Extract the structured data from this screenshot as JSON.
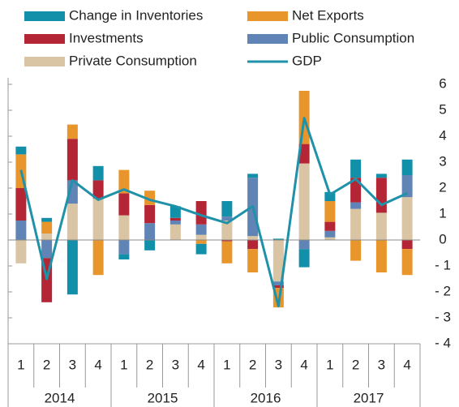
{
  "chart_data": {
    "type": "bar",
    "stacked": true,
    "categories": [
      "1",
      "2",
      "3",
      "4",
      "1",
      "2",
      "3",
      "4",
      "1",
      "2",
      "3",
      "4",
      "1",
      "2",
      "3",
      "4"
    ],
    "years": [
      "2014",
      "2015",
      "2016",
      "2017"
    ],
    "ylim": [
      -4,
      6
    ],
    "yticks": [
      {
        "value": -4,
        "label": "- 4"
      },
      {
        "value": -3,
        "label": "- 3"
      },
      {
        "value": -2,
        "label": "- 2"
      },
      {
        "value": -1,
        "label": "- 1"
      },
      0,
      1,
      2,
      3,
      4,
      5,
      6
    ],
    "series": [
      {
        "name": "Change in Inventories",
        "color": "#1390a9",
        "values": [
          0.3,
          0.15,
          -2.1,
          0.55,
          -0.2,
          -0.4,
          0.45,
          -0.4,
          0.6,
          0.15,
          0.05,
          -0.7,
          0.35,
          0.7,
          0.15,
          0.6
        ]
      },
      {
        "name": "Net Exports",
        "color": "#e8962c",
        "values": [
          1.3,
          0.45,
          0.55,
          -1.35,
          0.9,
          0.55,
          0.0,
          -0.15,
          -0.85,
          -0.9,
          -0.75,
          2.05,
          0.8,
          -0.8,
          -1.25,
          -1.0
        ]
      },
      {
        "name": "Investments",
        "color": "#b42536",
        "values": [
          1.25,
          -1.7,
          1.6,
          0.7,
          0.85,
          0.7,
          0.1,
          0.9,
          -0.05,
          -0.35,
          -0.1,
          0.75,
          0.35,
          0.95,
          1.35,
          -0.35
        ]
      },
      {
        "name": "Public Consumption",
        "color": "#5f84b5",
        "values": [
          0.75,
          -0.7,
          0.9,
          0.0,
          -0.55,
          0.65,
          0.15,
          0.4,
          0.15,
          2.25,
          -0.15,
          -0.35,
          0.25,
          0.25,
          0.0,
          0.85
        ]
      },
      {
        "name": "Private Consumption",
        "color": "#d9c4a3",
        "values": [
          -0.9,
          0.25,
          1.4,
          1.6,
          0.95,
          0.0,
          0.6,
          0.2,
          0.75,
          0.15,
          -1.6,
          2.95,
          0.1,
          1.2,
          1.05,
          1.65
        ]
      },
      {
        "name": "GDP",
        "type": "line",
        "color": "#1f91a8",
        "values": [
          2.7,
          -1.5,
          2.3,
          1.55,
          1.95,
          1.55,
          1.3,
          0.95,
          0.65,
          1.3,
          -2.55,
          4.7,
          1.75,
          2.35,
          1.35,
          1.8
        ]
      }
    ]
  }
}
